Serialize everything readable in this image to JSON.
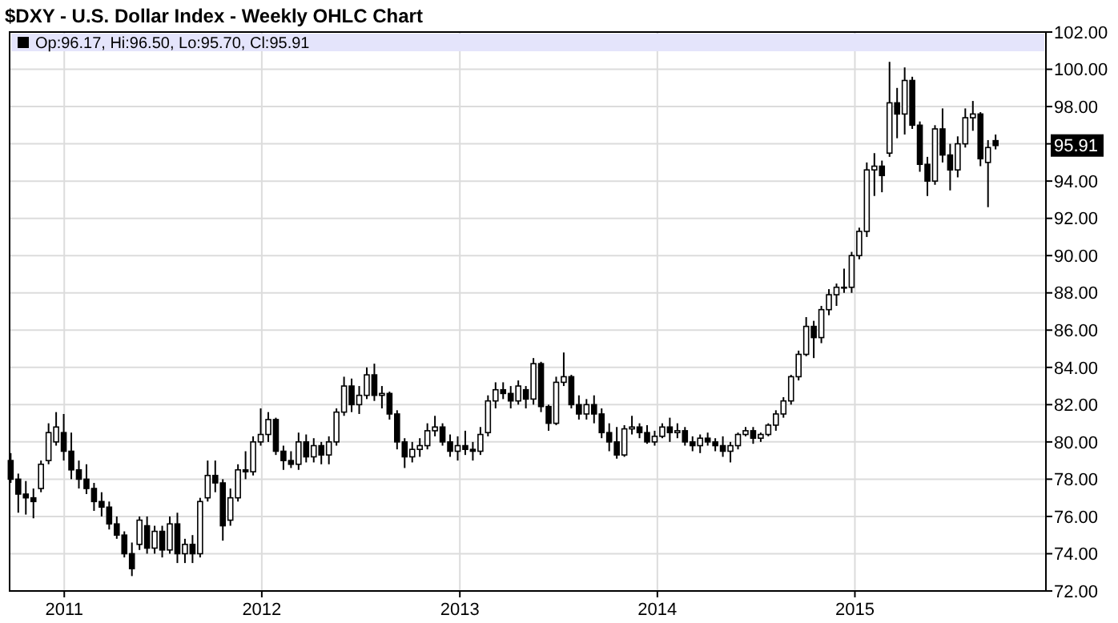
{
  "chart_data": {
    "type": "candlestick",
    "title": "$DXY - U.S. Dollar Index - Weekly OHLC Chart",
    "x": [
      "2010-09-24",
      "2010-10-08",
      "2010-10-22",
      "2010-11-05",
      "2010-11-19",
      "2010-12-03",
      "2010-12-17",
      "2010-12-31",
      "2011-01-14",
      "2011-01-28",
      "2011-02-11",
      "2011-02-25",
      "2011-03-11",
      "2011-03-25",
      "2011-04-08",
      "2011-04-22",
      "2011-05-06",
      "2011-05-20",
      "2011-06-03",
      "2011-06-17",
      "2011-07-01",
      "2011-07-15",
      "2011-07-29",
      "2011-08-12",
      "2011-08-26",
      "2011-09-09",
      "2011-09-23",
      "2011-10-07",
      "2011-10-21",
      "2011-11-04",
      "2011-11-18",
      "2011-12-02",
      "2011-12-16",
      "2011-12-30",
      "2012-01-13",
      "2012-01-27",
      "2012-02-10",
      "2012-02-24",
      "2012-03-09",
      "2012-03-23",
      "2012-04-06",
      "2012-04-20",
      "2012-05-04",
      "2012-05-18",
      "2012-06-01",
      "2012-06-15",
      "2012-06-29",
      "2012-07-13",
      "2012-07-27",
      "2012-08-10",
      "2012-08-24",
      "2012-09-07",
      "2012-09-21",
      "2012-10-05",
      "2012-10-19",
      "2012-11-02",
      "2012-11-16",
      "2012-11-30",
      "2012-12-14",
      "2012-12-28",
      "2013-01-11",
      "2013-01-25",
      "2013-02-08",
      "2013-02-22",
      "2013-03-08",
      "2013-03-22",
      "2013-04-05",
      "2013-04-19",
      "2013-05-03",
      "2013-05-17",
      "2013-05-31",
      "2013-06-14",
      "2013-06-28",
      "2013-07-12",
      "2013-07-26",
      "2013-08-09",
      "2013-08-23",
      "2013-09-06",
      "2013-09-20",
      "2013-10-04",
      "2013-10-18",
      "2013-11-01",
      "2013-11-15",
      "2013-11-29",
      "2013-12-13",
      "2013-12-27",
      "2014-01-10",
      "2014-01-24",
      "2014-02-07",
      "2014-02-21",
      "2014-03-07",
      "2014-03-21",
      "2014-04-04",
      "2014-04-18",
      "2014-05-02",
      "2014-05-16",
      "2014-05-30",
      "2014-06-13",
      "2014-06-27",
      "2014-07-11",
      "2014-07-25",
      "2014-08-08",
      "2014-08-22",
      "2014-09-05",
      "2014-09-19",
      "2014-10-03",
      "2014-10-17",
      "2014-10-31",
      "2014-11-14",
      "2014-11-28",
      "2014-12-12",
      "2014-12-26",
      "2015-01-09",
      "2015-01-23",
      "2015-02-06",
      "2015-02-20",
      "2015-03-06",
      "2015-03-20",
      "2015-04-03",
      "2015-04-17",
      "2015-05-01",
      "2015-05-15",
      "2015-05-29",
      "2015-06-12",
      "2015-06-26",
      "2015-07-10",
      "2015-07-24",
      "2015-08-07",
      "2015-08-21",
      "2015-09-04",
      "2015-09-18"
    ],
    "ohlc": [
      [
        79.0,
        79.4,
        77.8,
        78.0
      ],
      [
        78.0,
        78.3,
        76.2,
        77.2
      ],
      [
        77.2,
        77.9,
        76.1,
        77.0
      ],
      [
        77.0,
        77.5,
        75.9,
        76.8
      ],
      [
        77.5,
        79.0,
        77.3,
        78.8
      ],
      [
        79.0,
        81.0,
        78.8,
        80.5
      ],
      [
        80.0,
        81.6,
        79.8,
        80.8
      ],
      [
        80.5,
        81.5,
        79.0,
        79.5
      ],
      [
        79.5,
        80.5,
        78.0,
        78.5
      ],
      [
        78.5,
        79.0,
        77.5,
        78.0
      ],
      [
        78.0,
        78.8,
        77.2,
        77.5
      ],
      [
        77.5,
        77.8,
        76.3,
        76.8
      ],
      [
        76.8,
        77.3,
        76.0,
        76.5
      ],
      [
        76.5,
        76.8,
        75.3,
        75.6
      ],
      [
        75.6,
        76.0,
        74.8,
        75.0
      ],
      [
        75.0,
        75.2,
        73.8,
        74.0
      ],
      [
        74.0,
        74.6,
        72.8,
        73.2
      ],
      [
        74.5,
        76.0,
        74.2,
        75.8
      ],
      [
        75.5,
        76.0,
        74.0,
        74.3
      ],
      [
        74.3,
        75.5,
        74.0,
        75.2
      ],
      [
        75.2,
        75.5,
        73.8,
        74.2
      ],
      [
        74.2,
        76.0,
        74.0,
        75.6
      ],
      [
        75.6,
        76.2,
        73.5,
        74.0
      ],
      [
        74.0,
        74.8,
        73.5,
        74.5
      ],
      [
        74.5,
        75.0,
        73.5,
        74.0
      ],
      [
        74.0,
        77.0,
        73.8,
        76.8
      ],
      [
        77.0,
        79.0,
        76.8,
        78.2
      ],
      [
        78.2,
        79.0,
        77.3,
        77.8
      ],
      [
        77.8,
        78.0,
        74.7,
        75.5
      ],
      [
        75.8,
        77.5,
        75.5,
        77.0
      ],
      [
        77.0,
        78.8,
        76.8,
        78.5
      ],
      [
        78.5,
        79.5,
        78.0,
        78.4
      ],
      [
        78.4,
        80.3,
        78.2,
        80.0
      ],
      [
        80.0,
        81.8,
        79.8,
        80.4
      ],
      [
        80.4,
        81.6,
        80.0,
        81.2
      ],
      [
        81.2,
        81.3,
        79.3,
        79.5
      ],
      [
        79.5,
        79.8,
        78.5,
        79.0
      ],
      [
        79.0,
        79.5,
        78.6,
        78.8
      ],
      [
        78.8,
        80.5,
        78.5,
        80.0
      ],
      [
        80.0,
        80.4,
        78.9,
        79.2
      ],
      [
        79.2,
        80.2,
        78.9,
        79.8
      ],
      [
        79.8,
        80.0,
        78.8,
        79.3
      ],
      [
        79.3,
        80.3,
        78.8,
        80.0
      ],
      [
        80.0,
        81.8,
        79.8,
        81.6
      ],
      [
        81.6,
        83.5,
        81.4,
        83.0
      ],
      [
        83.0,
        83.4,
        81.6,
        82.0
      ],
      [
        82.0,
        83.0,
        81.5,
        82.5
      ],
      [
        82.5,
        84.0,
        82.3,
        83.6
      ],
      [
        83.6,
        84.2,
        82.2,
        82.5
      ],
      [
        82.5,
        83.0,
        81.8,
        82.6
      ],
      [
        82.6,
        82.7,
        81.2,
        81.5
      ],
      [
        81.5,
        81.7,
        79.6,
        80.0
      ],
      [
        80.0,
        80.2,
        78.6,
        79.2
      ],
      [
        79.2,
        80.0,
        78.9,
        79.6
      ],
      [
        79.6,
        80.2,
        79.2,
        79.8
      ],
      [
        79.8,
        81.0,
        79.6,
        80.6
      ],
      [
        80.6,
        81.4,
        80.3,
        80.8
      ],
      [
        80.8,
        81.0,
        79.8,
        80.0
      ],
      [
        80.0,
        80.4,
        79.2,
        79.5
      ],
      [
        79.5,
        80.3,
        79.0,
        79.8
      ],
      [
        79.8,
        80.6,
        79.3,
        79.6
      ],
      [
        79.6,
        80.0,
        79.0,
        79.5
      ],
      [
        79.5,
        80.8,
        79.3,
        80.4
      ],
      [
        80.5,
        82.5,
        80.3,
        82.2
      ],
      [
        82.2,
        83.2,
        81.8,
        82.8
      ],
      [
        82.8,
        83.2,
        82.3,
        82.6
      ],
      [
        82.6,
        83.0,
        81.8,
        82.2
      ],
      [
        82.2,
        83.3,
        82.0,
        83.0
      ],
      [
        82.8,
        83.0,
        81.8,
        82.3
      ],
      [
        82.3,
        84.5,
        82.0,
        84.2
      ],
      [
        84.2,
        84.3,
        81.6,
        81.9
      ],
      [
        81.9,
        82.0,
        80.6,
        81.0
      ],
      [
        81.0,
        83.5,
        80.9,
        83.2
      ],
      [
        83.2,
        84.8,
        83.0,
        83.5
      ],
      [
        83.5,
        83.6,
        81.8,
        82.0
      ],
      [
        82.0,
        82.5,
        81.2,
        81.5
      ],
      [
        81.5,
        82.3,
        81.2,
        82.0
      ],
      [
        82.0,
        82.5,
        81.0,
        81.5
      ],
      [
        81.5,
        81.8,
        80.2,
        80.5
      ],
      [
        80.5,
        81.0,
        79.5,
        80.0
      ],
      [
        80.0,
        80.8,
        79.1,
        79.3
      ],
      [
        79.3,
        80.9,
        79.2,
        80.7
      ],
      [
        80.7,
        81.4,
        80.4,
        80.8
      ],
      [
        80.8,
        81.0,
        80.2,
        80.5
      ],
      [
        80.5,
        80.9,
        79.9,
        80.0
      ],
      [
        80.0,
        80.6,
        79.8,
        80.3
      ],
      [
        80.3,
        81.0,
        80.2,
        80.8
      ],
      [
        80.8,
        81.3,
        80.0,
        80.5
      ],
      [
        80.5,
        81.0,
        80.2,
        80.6
      ],
      [
        80.6,
        80.8,
        79.8,
        80.0
      ],
      [
        80.0,
        80.3,
        79.5,
        79.8
      ],
      [
        79.8,
        80.4,
        79.4,
        80.2
      ],
      [
        80.2,
        80.5,
        79.8,
        80.0
      ],
      [
        80.0,
        80.2,
        79.5,
        79.8
      ],
      [
        79.8,
        80.3,
        79.2,
        79.5
      ],
      [
        79.5,
        80.0,
        78.9,
        79.8
      ],
      [
        79.8,
        80.5,
        79.6,
        80.4
      ],
      [
        80.4,
        80.8,
        80.3,
        80.6
      ],
      [
        80.6,
        80.8,
        79.9,
        80.2
      ],
      [
        80.2,
        80.5,
        80.0,
        80.4
      ],
      [
        80.4,
        81.0,
        80.3,
        80.9
      ],
      [
        80.9,
        81.7,
        80.6,
        81.5
      ],
      [
        81.5,
        82.4,
        81.3,
        82.2
      ],
      [
        82.2,
        83.6,
        82.0,
        83.5
      ],
      [
        83.5,
        84.9,
        83.3,
        84.7
      ],
      [
        84.7,
        86.7,
        84.6,
        86.2
      ],
      [
        86.2,
        86.5,
        84.5,
        85.6
      ],
      [
        85.6,
        87.3,
        85.3,
        87.1
      ],
      [
        87.1,
        88.2,
        86.8,
        87.9
      ],
      [
        87.9,
        88.5,
        87.3,
        88.3
      ],
      [
        88.3,
        89.3,
        88.0,
        88.3
      ],
      [
        88.3,
        90.2,
        88.0,
        90.0
      ],
      [
        90.0,
        91.5,
        89.8,
        91.3
      ],
      [
        91.3,
        95.0,
        91.0,
        94.6
      ],
      [
        94.6,
        95.5,
        93.2,
        94.8
      ],
      [
        94.8,
        95.1,
        93.4,
        94.3
      ],
      [
        95.5,
        100.4,
        95.3,
        98.2
      ],
      [
        98.2,
        99.0,
        96.3,
        97.6
      ],
      [
        97.6,
        100.1,
        96.5,
        99.4
      ],
      [
        99.4,
        99.6,
        96.8,
        97.0
      ],
      [
        97.0,
        97.2,
        94.5,
        94.9
      ],
      [
        94.9,
        95.3,
        93.2,
        94.0
      ],
      [
        94.0,
        97.0,
        93.8,
        96.8
      ],
      [
        96.8,
        97.9,
        95.0,
        95.4
      ],
      [
        95.4,
        96.0,
        93.5,
        94.6
      ],
      [
        94.6,
        96.4,
        94.2,
        96.0
      ],
      [
        96.0,
        97.9,
        95.8,
        97.4
      ],
      [
        97.4,
        98.3,
        96.7,
        97.6
      ],
      [
        97.6,
        97.7,
        94.8,
        95.2
      ],
      [
        95.0,
        96.2,
        92.6,
        95.8
      ],
      [
        96.17,
        96.5,
        95.7,
        95.91
      ]
    ],
    "xlim": [
      "2010-09-22",
      "2015-12-20"
    ],
    "xticks": [
      {
        "value": "2011-01-01",
        "label": "2011"
      },
      {
        "value": "2012-01-01",
        "label": "2012"
      },
      {
        "value": "2013-01-01",
        "label": "2013"
      },
      {
        "value": "2014-01-01",
        "label": "2014"
      },
      {
        "value": "2015-01-01",
        "label": "2015"
      }
    ],
    "ylim": [
      72,
      102
    ],
    "yticks": [
      {
        "value": 72,
        "label": "72.00"
      },
      {
        "value": 74,
        "label": "74.00"
      },
      {
        "value": 76,
        "label": "76.00"
      },
      {
        "value": 78,
        "label": "78.00"
      },
      {
        "value": 80,
        "label": "80.00"
      },
      {
        "value": 82,
        "label": "82.00"
      },
      {
        "value": 84,
        "label": "84.00"
      },
      {
        "value": 86,
        "label": "86.00"
      },
      {
        "value": 88,
        "label": "88.00"
      },
      {
        "value": 90,
        "label": "90.00"
      },
      {
        "value": 92,
        "label": "92.00"
      },
      {
        "value": 94,
        "label": "94.00"
      },
      {
        "value": 96,
        "label": null
      },
      {
        "value": 98,
        "label": "98.00"
      },
      {
        "value": 100,
        "label": "100.00"
      },
      {
        "value": 102,
        "label": "102.00"
      }
    ],
    "grid": true,
    "annotations": [
      "Op:96.17, Hi:96.50, Lo:95.70, Cl:95.91",
      "95.91"
    ]
  }
}
